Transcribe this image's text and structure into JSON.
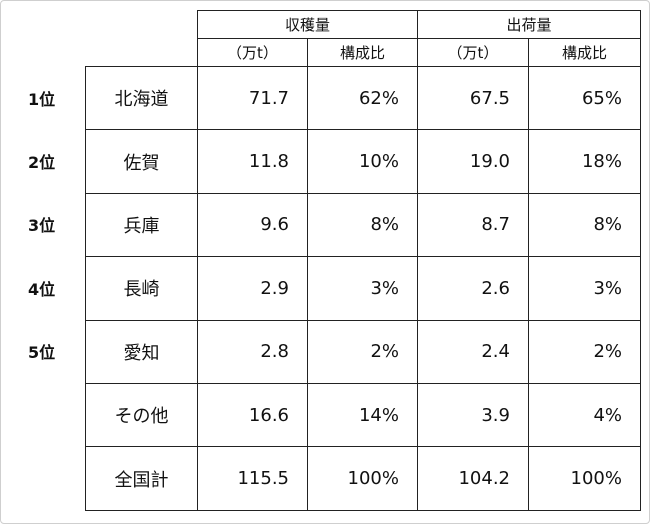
{
  "table": {
    "groups": [
      "収穫量",
      "出荷量"
    ],
    "units": [
      "（万t）",
      "構成比",
      "（万t）",
      "構成比"
    ],
    "rows": [
      {
        "rank": "1位",
        "name": "北海道",
        "cells": [
          "71.7",
          "62%",
          "67.5",
          "65%"
        ]
      },
      {
        "rank": "2位",
        "name": "佐賀",
        "cells": [
          "11.8",
          "10%",
          "19.0",
          "18%"
        ]
      },
      {
        "rank": "3位",
        "name": "兵庫",
        "cells": [
          "9.6",
          "8%",
          "8.7",
          "8%"
        ]
      },
      {
        "rank": "4位",
        "name": "長崎",
        "cells": [
          "2.9",
          "3%",
          "2.6",
          "3%"
        ]
      },
      {
        "rank": "5位",
        "name": "愛知",
        "cells": [
          "2.8",
          "2%",
          "2.4",
          "2%"
        ]
      },
      {
        "name": "その他",
        "cells": [
          "16.6",
          "14%",
          "3.9",
          "4%"
        ]
      },
      {
        "name": "全国計",
        "cells": [
          "115.5",
          "100%",
          "104.2",
          "100%"
        ]
      }
    ]
  }
}
